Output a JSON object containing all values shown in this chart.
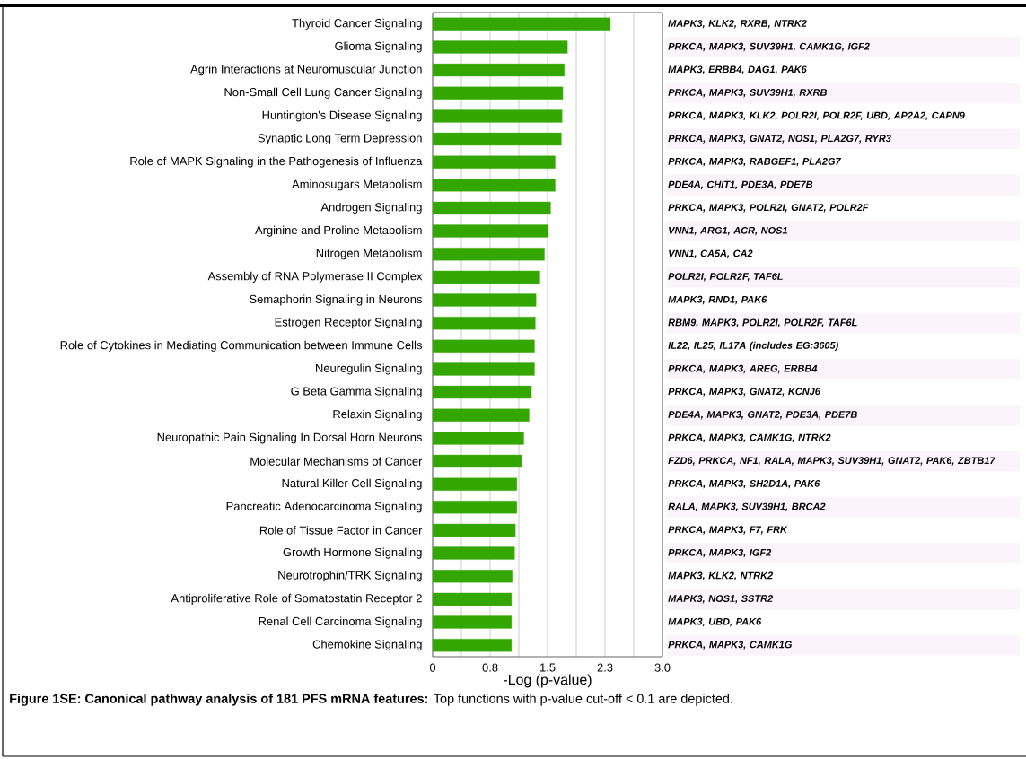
{
  "chart_data": {
    "type": "bar",
    "orientation": "horizontal",
    "xlabel": "-Log (p-value)",
    "color": "#33a600",
    "categories": [
      "Thyroid Cancer Signaling",
      "Glioma Signaling",
      "Agrin Interactions at Neuromuscular Junction",
      "Non-Small Cell Lung Cancer Signaling",
      "Huntington's Disease Signaling",
      "Synaptic Long Term Depression",
      "Role of MAPK Signaling in the Pathogenesis of Influenza",
      "Aminosugars Metabolism",
      "Androgen Signaling",
      "Arginine and Proline Metabolism",
      "Nitrogen Metabolism",
      "Assembly of RNA Polymerase II Complex",
      "Semaphorin Signaling in Neurons",
      "Estrogen Receptor Signaling",
      "Role of Cytokines in Mediating Communication between Immune Cells",
      "Neuregulin Signaling",
      "G Beta Gamma Signaling",
      "Relaxin Signaling",
      "Neuropathic Pain Signaling In Dorsal Horn Neurons",
      "Molecular Mechanisms of Cancer",
      "Natural Killer Cell Signaling",
      "Pancreatic Adenocarcinoma Signaling",
      "Role of Tissue Factor in Cancer",
      "Growth Hormone Signaling",
      "Neurotrophin/TRK Signaling",
      "Antiproliferative Role of Somatostatin Receptor 2",
      "Renal Cell Carcinoma Signaling",
      "Chemokine Signaling"
    ],
    "values": [
      2.32,
      1.76,
      1.72,
      1.7,
      1.69,
      1.68,
      1.6,
      1.6,
      1.54,
      1.51,
      1.46,
      1.4,
      1.35,
      1.34,
      1.33,
      1.33,
      1.29,
      1.26,
      1.19,
      1.16,
      1.1,
      1.1,
      1.08,
      1.07,
      1.04,
      1.03,
      1.03,
      1.03
    ],
    "xlim": [
      0,
      3
    ],
    "xticks": [
      0,
      {
        "value": 0.375,
        "label": null
      },
      {
        "value": 0.75,
        "label": "0.8"
      },
      {
        "value": 1.125,
        "label": null
      },
      1.5,
      {
        "value": 1.875,
        "label": null
      },
      {
        "value": 2.25,
        "label": "2.3"
      },
      {
        "value": 2.625,
        "label": null
      },
      {
        "value": 3,
        "label": "3.0"
      }
    ],
    "grid": "x",
    "annotations": [
      "MAPK3, KLK2, RXRB, NTRK2",
      "PRKCA, MAPK3, SUV39H1, CAMK1G, IGF2",
      "MAPK3, ERBB4, DAG1, PAK6",
      "PRKCA, MAPK3, SUV39H1, RXRB",
      "PRKCA, MAPK3, KLK2, POLR2I, POLR2F, UBD, AP2A2, CAPN9",
      "PRKCA, MAPK3, GNAT2, NOS1, PLA2G7, RYR3",
      "PRKCA, MAPK3, RABGEF1, PLA2G7",
      "PDE4A, CHIT1, PDE3A, PDE7B",
      "PRKCA, MAPK3, POLR2I, GNAT2, POLR2F",
      "VNN1, ARG1, ACR, NOS1",
      "VNN1, CA5A, CA2",
      "POLR2I, POLR2F, TAF6L",
      "MAPK3, RND1, PAK6",
      "RBM9, MAPK3, POLR2I, POLR2F, TAF6L",
      "IL22, IL25, IL17A (includes EG:3605)",
      "PRKCA, MAPK3, AREG, ERBB4",
      "PRKCA, MAPK3, GNAT2, KCNJ6",
      "PDE4A, MAPK3, GNAT2, PDE3A, PDE7B",
      "PRKCA, MAPK3, CAMK1G, NTRK2",
      "FZD6, PRKCA, NF1, RALA, MAPK3, SUV39H1, GNAT2, PAK6, ZBTB17",
      "PRKCA, MAPK3, SH2D1A, PAK6",
      "RALA, MAPK3, SUV39H1, BRCA2",
      "PRKCA, MAPK3, F7, FRK",
      "PRKCA, MAPK3, IGF2",
      "MAPK3, KLK2, NTRK2",
      "MAPK3, NOS1, SSTR2",
      "MAPK3, UBD, PAK6",
      "PRKCA, MAPK3, CAMK1G",
      "**Figure 1SE: Canonical pathway analysis of 181 PFS mRNA features:** Top functions with p-value cut-off < 0.1 are depicted."
    ]
  }
}
